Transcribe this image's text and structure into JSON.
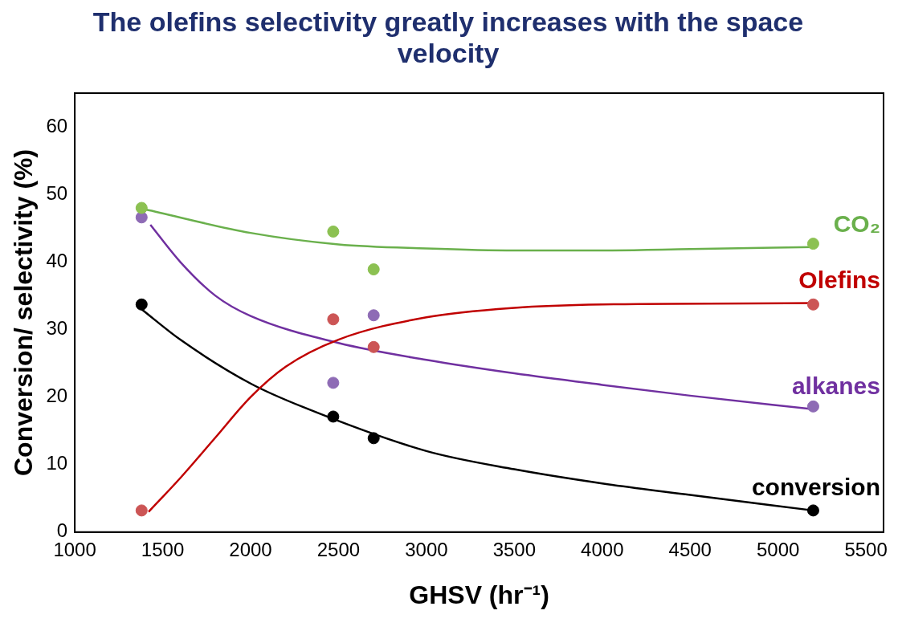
{
  "chart_data": {
    "type": "scatter",
    "title": "The olefins selectivity greatly increases with the space velocity",
    "xlabel": "GHSV (hr⁻¹)",
    "ylabel": "Conversion/ selectivity (%)",
    "xlim": [
      1000,
      5600
    ],
    "xticks": [
      1000,
      1500,
      2000,
      2500,
      3000,
      3500,
      4000,
      4500,
      5000,
      5500
    ],
    "ylim": [
      0,
      65
    ],
    "yticks": [
      0,
      10,
      20,
      30,
      40,
      50,
      60
    ],
    "grid": false,
    "legend": false,
    "marker": "circle",
    "series": [
      {
        "color": "#8cc152",
        "x": [
          1380,
          2470,
          2700,
          5200
        ],
        "values": [
          48.0,
          44.5,
          38.9,
          42.7
        ]
      },
      {
        "color": "#cc5555",
        "x": [
          1380,
          2470,
          2700,
          5200
        ],
        "values": [
          3.2,
          31.5,
          27.4,
          33.7
        ]
      },
      {
        "color": "#8e6bb5",
        "x": [
          1380,
          2470,
          2700,
          5200
        ],
        "values": [
          46.6,
          22.1,
          32.1,
          18.6
        ]
      },
      {
        "color": "#000000",
        "x": [
          1380,
          2470,
          2700,
          5200
        ],
        "values": [
          33.7,
          17.1,
          13.9,
          3.2
        ]
      },
      {
        "type": "line",
        "marker": "none",
        "name": "CO₂",
        "color": "#6ab04c",
        "x": [
          1400,
          2000,
          2500,
          3000,
          3500,
          4000,
          4500,
          5200
        ],
        "values": [
          47.8,
          44.3,
          42.6,
          42,
          41.7,
          41.7,
          41.9,
          42.2
        ]
      },
      {
        "type": "line",
        "marker": "none",
        "name": "Olefins",
        "color": "#c00000",
        "x": [
          1420,
          1600,
          1800,
          2000,
          2200,
          2500,
          3000,
          3500,
          4000,
          5200
        ],
        "values": [
          3,
          8,
          14,
          20,
          24.5,
          28.5,
          31.8,
          33.2,
          33.7,
          33.9
        ]
      },
      {
        "type": "line",
        "marker": "none",
        "name": "alkanes",
        "color": "#7030a0",
        "x": [
          1430,
          1600,
          1800,
          2000,
          2500,
          3000,
          3500,
          4000,
          4500,
          5200
        ],
        "values": [
          45.5,
          40,
          35,
          32,
          28,
          25.5,
          23.5,
          21.8,
          20.2,
          18.2
        ]
      },
      {
        "type": "line",
        "marker": "none",
        "name": "conversion",
        "color": "#000000",
        "x": [
          1380,
          1600,
          2000,
          2300,
          3000,
          3500,
          4000,
          4500,
          5200
        ],
        "values": [
          33,
          28.5,
          22,
          18.5,
          12,
          9.3,
          7.2,
          5.5,
          3.2
        ]
      }
    ]
  }
}
